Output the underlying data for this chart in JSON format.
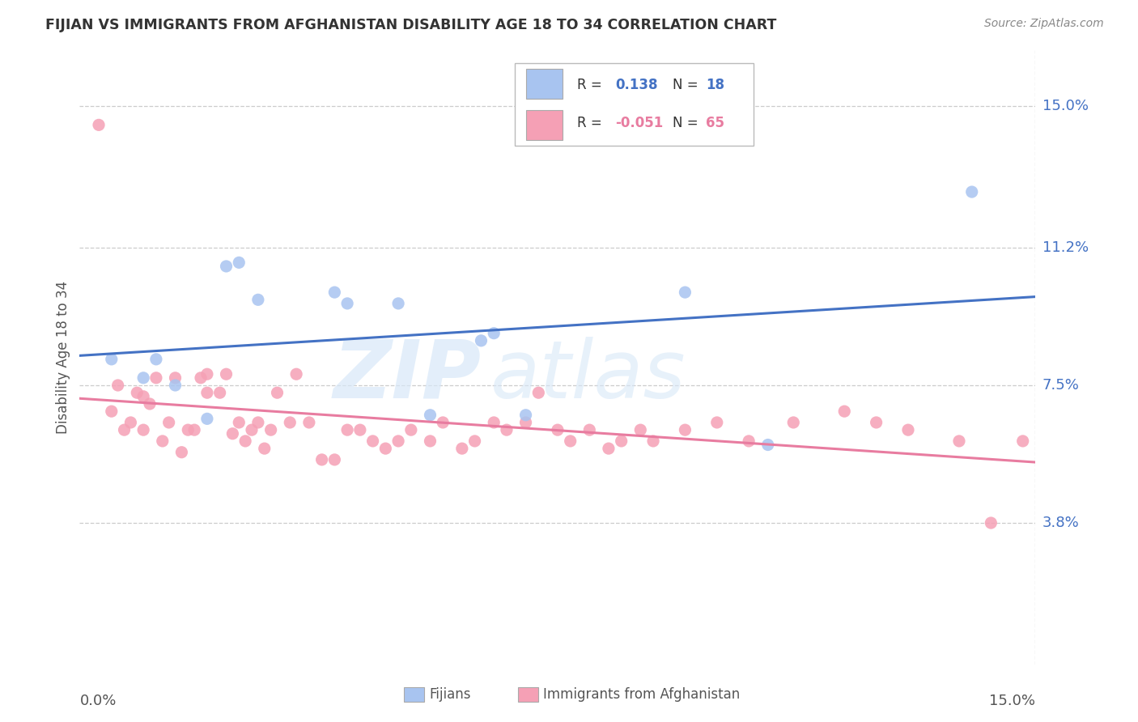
{
  "title": "FIJIAN VS IMMIGRANTS FROM AFGHANISTAN DISABILITY AGE 18 TO 34 CORRELATION CHART",
  "source": "Source: ZipAtlas.com",
  "ylabel": "Disability Age 18 to 34",
  "xlim": [
    0.0,
    0.15
  ],
  "ylim": [
    0.0,
    0.165
  ],
  "yticks": [
    0.038,
    0.075,
    0.112,
    0.15
  ],
  "ytick_labels": [
    "3.8%",
    "7.5%",
    "11.2%",
    "15.0%"
  ],
  "xtick_labels": [
    "0.0%",
    "15.0%"
  ],
  "fijian_color": "#a8c4f0",
  "afghanistan_color": "#f5a0b5",
  "fijian_line_color": "#4472c4",
  "afghanistan_line_color": "#e87ca0",
  "watermark_zip": "ZIP",
  "watermark_atlas": "atlas",
  "fijian_scatter_x": [
    0.005,
    0.01,
    0.012,
    0.015,
    0.02,
    0.023,
    0.025,
    0.028,
    0.04,
    0.043,
    0.05,
    0.055,
    0.062,
    0.065,
    0.07,
    0.095,
    0.11,
    0.14
  ],
  "fijian_scatter_y": [
    0.08,
    0.077,
    0.083,
    0.075,
    0.066,
    0.105,
    0.107,
    0.098,
    0.1,
    0.095,
    0.095,
    0.068,
    0.085,
    0.088,
    0.068,
    0.1,
    0.06,
    0.125
  ],
  "afghanistan_scatter_x": [
    0.002,
    0.003,
    0.004,
    0.005,
    0.006,
    0.007,
    0.008,
    0.009,
    0.01,
    0.011,
    0.012,
    0.013,
    0.014,
    0.015,
    0.016,
    0.017,
    0.018,
    0.019,
    0.02,
    0.021,
    0.022,
    0.023,
    0.024,
    0.025,
    0.026,
    0.027,
    0.028,
    0.029,
    0.03,
    0.031,
    0.033,
    0.035,
    0.037,
    0.038,
    0.04,
    0.042,
    0.044,
    0.046,
    0.048,
    0.05,
    0.052,
    0.055,
    0.057,
    0.06,
    0.062,
    0.065,
    0.068,
    0.07,
    0.073,
    0.075,
    0.078,
    0.08,
    0.085,
    0.088,
    0.09,
    0.095,
    0.1,
    0.105,
    0.11,
    0.115,
    0.12,
    0.125,
    0.13,
    0.14,
    0.148
  ],
  "afghanistan_scatter_y": [
    0.072,
    0.065,
    0.07,
    0.063,
    0.068,
    0.063,
    0.065,
    0.06,
    0.063,
    0.068,
    0.065,
    0.06,
    0.063,
    0.058,
    0.06,
    0.063,
    0.068,
    0.065,
    0.073,
    0.078,
    0.068,
    0.072,
    0.063,
    0.065,
    0.06,
    0.063,
    0.065,
    0.058,
    0.063,
    0.06,
    0.065,
    0.063,
    0.06,
    0.058,
    0.06,
    0.063,
    0.063,
    0.06,
    0.058,
    0.06,
    0.063,
    0.06,
    0.065,
    0.058,
    0.06,
    0.065,
    0.063,
    0.068,
    0.065,
    0.063,
    0.06,
    0.063,
    0.058,
    0.06,
    0.063,
    0.06,
    0.065,
    0.06,
    0.063,
    0.068,
    0.065,
    0.063,
    0.06,
    0.058,
    0.063
  ],
  "fijian_line_x": [
    0.0,
    0.15
  ],
  "fijian_line_y": [
    0.077,
    0.095
  ],
  "afghanistan_line_x": [
    0.0,
    0.15
  ],
  "afghanistan_line_y": [
    0.069,
    0.062
  ]
}
